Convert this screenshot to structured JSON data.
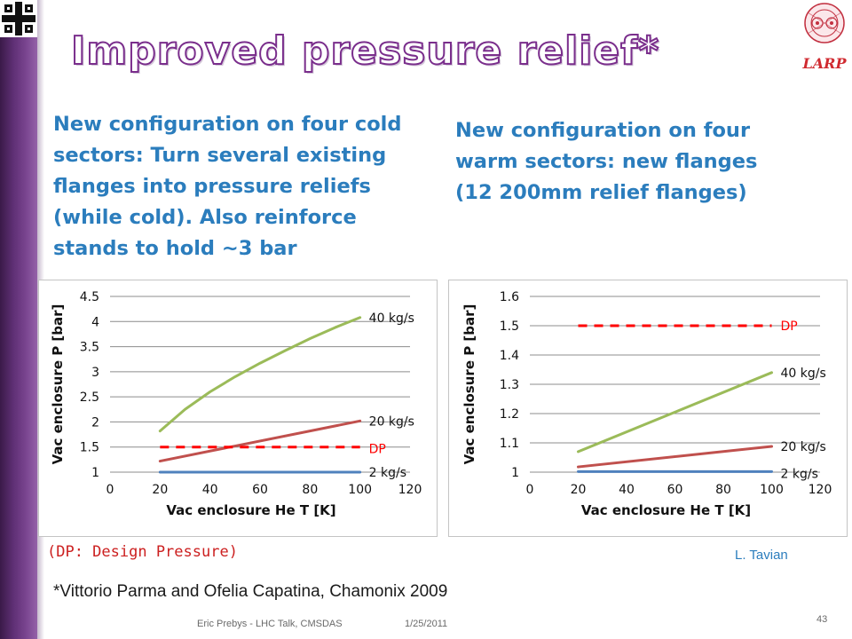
{
  "slide": {
    "title": "Improved pressure relief*",
    "logo_right_label": "LARP",
    "left_text": "New configuration on four cold sectors:  Turn several existing flanges into pressure reliefs (while cold). Also reinforce stands to hold ~3 bar",
    "right_text": "New configuration on four warm sectors: new flanges (12 200mm relief flanges)",
    "dp_note": "(DP: Design Pressure)",
    "credit": "L. Tavian",
    "citation": "*Vittorio Parma and Ofelia Capatina, Chamonix 2009",
    "footer_left": "Eric Prebys - LHC Talk, CMSDAS",
    "footer_date": "1/25/2011",
    "page_number": "43"
  },
  "colors": {
    "sidebar": "#5e2f74",
    "title_outline": "#7a2e8c",
    "body_text": "#2b7dbd",
    "series_40": "#9bbb59",
    "series_20": "#c0504d",
    "series_2": "#4f81bd",
    "dp_line": "#ff0000"
  },
  "chart_data": [
    {
      "type": "line",
      "xlabel": "Vac enclosure He T [K]",
      "ylabel": "Vac enclosure P [bar]",
      "xlim": [
        0,
        120
      ],
      "ylim": [
        1,
        4.5
      ],
      "xticks": [
        "0",
        "20",
        "40",
        "60",
        "80",
        "100",
        "120"
      ],
      "yticks": [
        "1",
        "1.5",
        "2",
        "2.5",
        "3",
        "3.5",
        "4",
        "4.5"
      ],
      "grid": true,
      "series": [
        {
          "name": "40 kg/s",
          "color": "#9bbb59",
          "x": [
            20,
            30,
            40,
            50,
            60,
            70,
            80,
            90,
            100
          ],
          "y": [
            1.82,
            2.25,
            2.6,
            2.9,
            3.17,
            3.42,
            3.66,
            3.88,
            4.08
          ]
        },
        {
          "name": "20 kg/s",
          "color": "#c0504d",
          "x": [
            20,
            100
          ],
          "y": [
            1.22,
            2.02
          ]
        },
        {
          "name": "2 kg/s",
          "color": "#4f81bd",
          "x": [
            20,
            100
          ],
          "y": [
            1.0,
            1.0
          ]
        },
        {
          "name": "DP",
          "color": "#ff0000",
          "dashed": true,
          "x": [
            20,
            100
          ],
          "y": [
            1.5,
            1.5
          ]
        }
      ]
    },
    {
      "type": "line",
      "xlabel": "Vac enclosure He T [K]",
      "ylabel": "Vac enclosure P [bar]",
      "xlim": [
        0,
        120
      ],
      "ylim": [
        1,
        1.6
      ],
      "xticks": [
        "0",
        "20",
        "40",
        "60",
        "80",
        "100",
        "120"
      ],
      "yticks": [
        "1",
        "1.1",
        "1.2",
        "1.3",
        "1.4",
        "1.5",
        "1.6"
      ],
      "grid": true,
      "series": [
        {
          "name": "DP",
          "color": "#ff0000",
          "dashed": true,
          "x": [
            20,
            100
          ],
          "y": [
            1.5,
            1.5
          ]
        },
        {
          "name": "40 kg/s",
          "color": "#9bbb59",
          "x": [
            20,
            100
          ],
          "y": [
            1.07,
            1.34
          ]
        },
        {
          "name": "20 kg/s",
          "color": "#c0504d",
          "x": [
            20,
            100
          ],
          "y": [
            1.018,
            1.088
          ]
        },
        {
          "name": "2 kg/s",
          "color": "#4f81bd",
          "x": [
            20,
            100
          ],
          "y": [
            1.002,
            1.002
          ]
        }
      ]
    }
  ]
}
